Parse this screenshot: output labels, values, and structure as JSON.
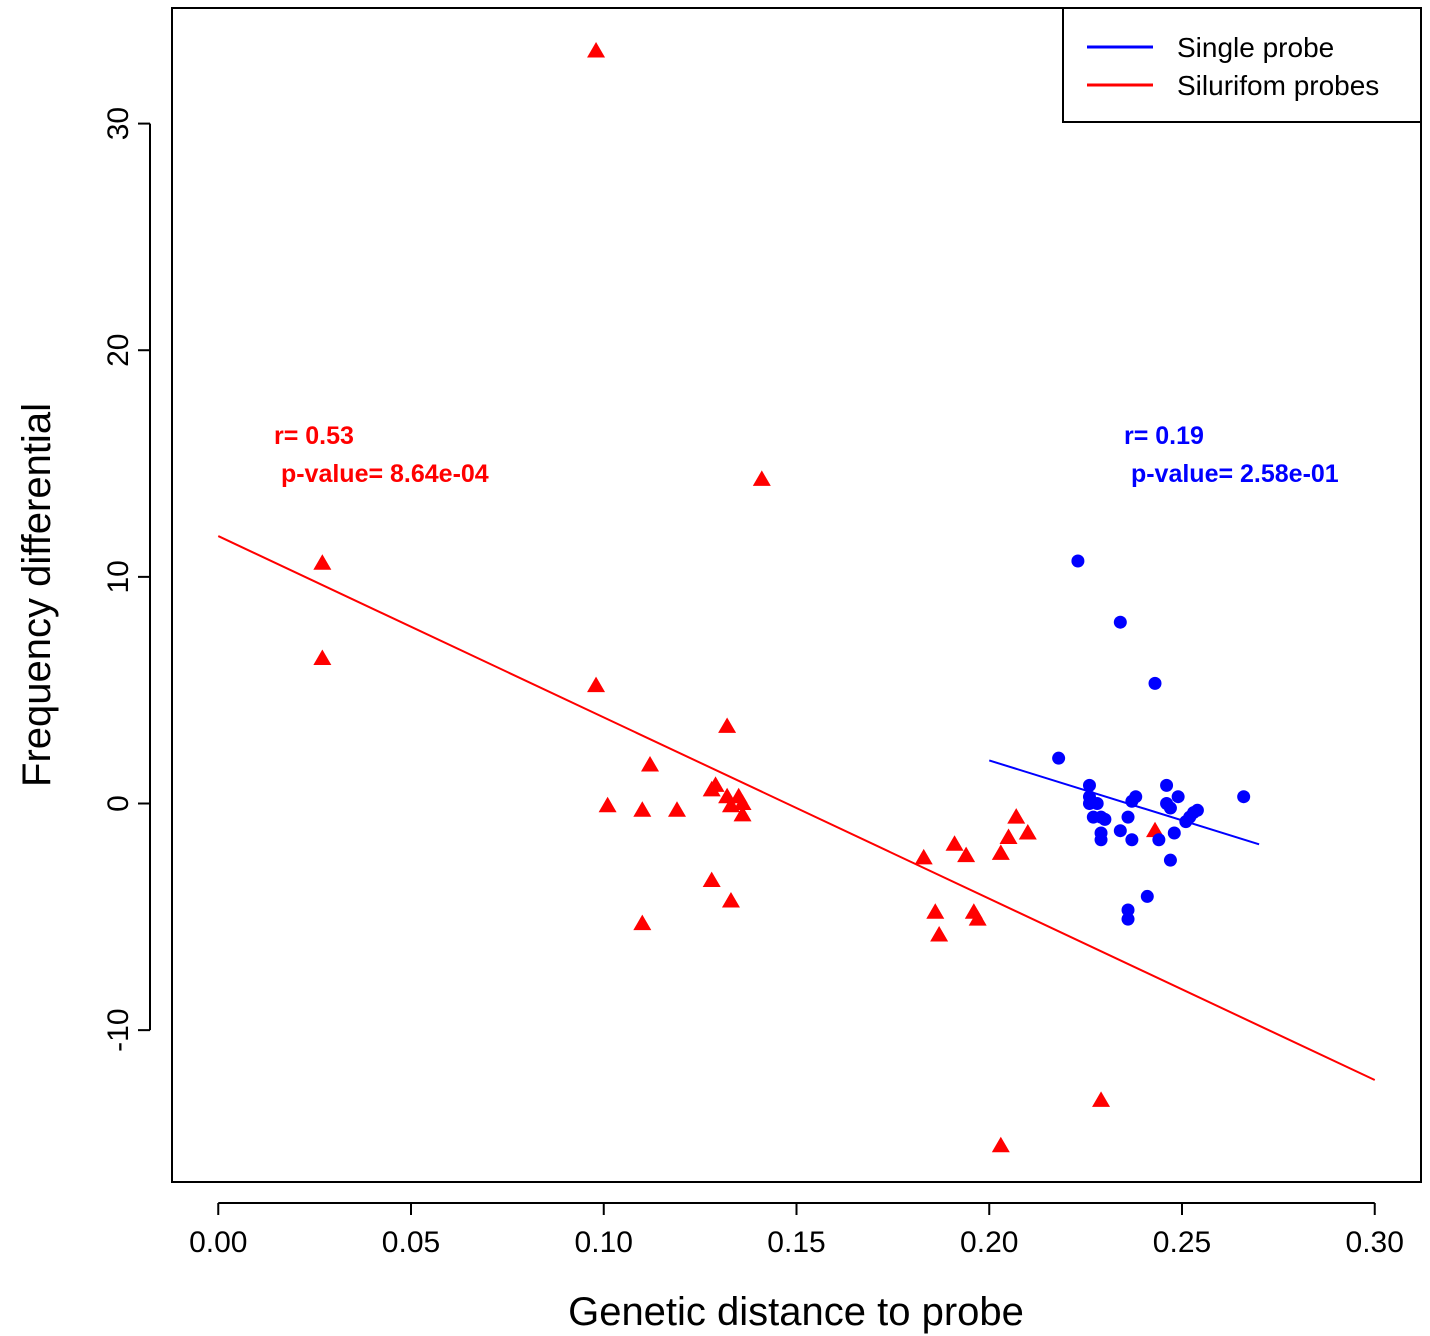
{
  "chart_data": {
    "type": "scatter",
    "xlabel": "Genetic distance to probe",
    "ylabel": "Frequency differential",
    "xlim": [
      -0.012,
      0.312
    ],
    "ylim": [
      -16.7,
      35.1
    ],
    "xticks": [
      "0.00",
      "0.05",
      "0.10",
      "0.15",
      "0.20",
      "0.25",
      "0.30"
    ],
    "xtick_values": [
      0.0,
      0.05,
      0.1,
      0.15,
      0.2,
      0.25,
      0.3
    ],
    "yticks": [
      "-10",
      "0",
      "10",
      "20",
      "30"
    ],
    "ytick_values": [
      -10,
      0,
      10,
      20,
      30
    ],
    "grid": false,
    "legend_position": "top-right",
    "legend": [
      {
        "label": "Single probe",
        "color": "#0000ff"
      },
      {
        "label": "Silurifom probes",
        "color": "#ff0000"
      }
    ],
    "series": [
      {
        "name": "Silurifom probes",
        "marker": "triangle",
        "color": "#ff0000",
        "points": [
          [
            0.098,
            33.2
          ],
          [
            0.141,
            14.3
          ],
          [
            0.027,
            10.6
          ],
          [
            0.027,
            6.4
          ],
          [
            0.098,
            5.2
          ],
          [
            0.132,
            3.4
          ],
          [
            0.112,
            1.7
          ],
          [
            0.101,
            -0.1
          ],
          [
            0.11,
            -0.3
          ],
          [
            0.119,
            -0.3
          ],
          [
            0.128,
            0.6
          ],
          [
            0.129,
            0.8
          ],
          [
            0.132,
            0.3
          ],
          [
            0.133,
            -0.1
          ],
          [
            0.135,
            0.3
          ],
          [
            0.136,
            0.0
          ],
          [
            0.136,
            -0.5
          ],
          [
            0.128,
            -3.4
          ],
          [
            0.133,
            -4.3
          ],
          [
            0.11,
            -5.3
          ],
          [
            0.183,
            -2.4
          ],
          [
            0.191,
            -1.8
          ],
          [
            0.194,
            -2.3
          ],
          [
            0.186,
            -4.8
          ],
          [
            0.187,
            -5.8
          ],
          [
            0.196,
            -4.8
          ],
          [
            0.197,
            -5.1
          ],
          [
            0.203,
            -2.2
          ],
          [
            0.205,
            -1.5
          ],
          [
            0.207,
            -0.6
          ],
          [
            0.21,
            -1.3
          ],
          [
            0.243,
            -1.2
          ],
          [
            0.229,
            -13.1
          ],
          [
            0.203,
            -15.1
          ]
        ]
      },
      {
        "name": "Single probe",
        "marker": "circle",
        "color": "#0000ff",
        "points": [
          [
            0.223,
            10.7
          ],
          [
            0.234,
            8.0
          ],
          [
            0.243,
            5.3
          ],
          [
            0.218,
            2.0
          ],
          [
            0.226,
            0.8
          ],
          [
            0.226,
            0.3
          ],
          [
            0.226,
            0.0
          ],
          [
            0.228,
            0.0
          ],
          [
            0.227,
            -0.6
          ],
          [
            0.229,
            -0.6
          ],
          [
            0.23,
            -0.7
          ],
          [
            0.229,
            -1.3
          ],
          [
            0.229,
            -1.6
          ],
          [
            0.234,
            -1.2
          ],
          [
            0.236,
            -0.6
          ],
          [
            0.237,
            -1.6
          ],
          [
            0.237,
            0.1
          ],
          [
            0.238,
            0.3
          ],
          [
            0.244,
            -1.6
          ],
          [
            0.246,
            0.8
          ],
          [
            0.246,
            0.0
          ],
          [
            0.247,
            -0.2
          ],
          [
            0.247,
            -2.5
          ],
          [
            0.248,
            -1.3
          ],
          [
            0.249,
            0.3
          ],
          [
            0.251,
            -0.8
          ],
          [
            0.252,
            -0.6
          ],
          [
            0.253,
            -0.4
          ],
          [
            0.254,
            -0.3
          ],
          [
            0.241,
            -4.1
          ],
          [
            0.236,
            -4.7
          ],
          [
            0.236,
            -5.1
          ],
          [
            0.266,
            0.3
          ]
        ]
      }
    ],
    "fit_lines": [
      {
        "series": "Silurifom probes",
        "color": "#ff0000",
        "x": [
          0.0,
          0.3
        ],
        "y": [
          11.8,
          -12.2
        ]
      },
      {
        "series": "Single probe",
        "color": "#0000ff",
        "x": [
          0.2,
          0.27
        ],
        "y": [
          1.9,
          -1.8
        ]
      }
    ],
    "annotations": [
      {
        "series": "Silurifom probes",
        "color": "#ff0000",
        "lines": [
          "r= 0.53",
          " p-value= 8.64e-04"
        ]
      },
      {
        "series": "Single probe",
        "color": "#0000ff",
        "lines": [
          "r= 0.19",
          " p-value= 2.58e-01"
        ]
      }
    ]
  }
}
